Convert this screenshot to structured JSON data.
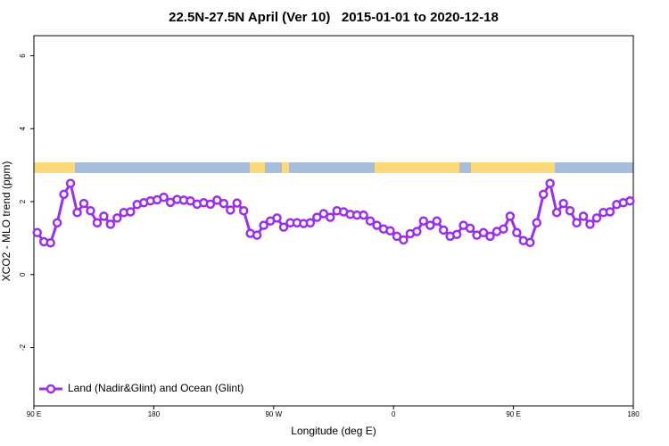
{
  "chart_data": {
    "type": "line",
    "title": "22.5N-27.5N April (Ver 10)   2015-01-01 to 2020-12-18",
    "xlabel": "Longitude (deg E)",
    "ylabel": "XCO2 - MLO trend (ppm)",
    "x": [
      92.5,
      97.5,
      102.5,
      107.5,
      112.5,
      117.5,
      122.5,
      127.5,
      132.5,
      137.5,
      142.5,
      147.5,
      152.5,
      157.5,
      162.5,
      167.5,
      172.5,
      177.5,
      182.5,
      187.5,
      192.5,
      197.5,
      202.5,
      207.5,
      212.5,
      217.5,
      222.5,
      227.5,
      232.5,
      237.5,
      242.5,
      247.5,
      252.5,
      257.5,
      262.5,
      267.5,
      272.5,
      277.5,
      282.5,
      287.5,
      292.5,
      297.5,
      302.5,
      307.5,
      312.5,
      317.5,
      322.5,
      327.5,
      332.5,
      337.5,
      342.5,
      347.5,
      352.5,
      357.5,
      362.5,
      367.5,
      372.5,
      377.5,
      382.5,
      387.5,
      392.5,
      397.5,
      402.5,
      407.5,
      412.5,
      417.5,
      422.5,
      427.5,
      432.5,
      437.5,
      442.5,
      447.5,
      452.5,
      457.5,
      462.5,
      467.5,
      472.5,
      477.5,
      482.5,
      487.5,
      492.5,
      497.5,
      502.5,
      507.5,
      512.5,
      517.5,
      522.5,
      527.5,
      532.5,
      537.5
    ],
    "series": [
      {
        "name": "Land (Nadir&Glint) and Ocean (Glint)",
        "color": "#9b30e6",
        "values": [
          1.15,
          0.9,
          0.87,
          1.42,
          2.2,
          2.5,
          1.7,
          1.95,
          1.75,
          1.42,
          1.6,
          1.38,
          1.55,
          1.7,
          1.72,
          1.92,
          1.97,
          2.02,
          2.05,
          2.12,
          1.98,
          2.06,
          2.04,
          2.02,
          1.93,
          1.97,
          1.93,
          2.04,
          1.95,
          1.77,
          1.96,
          1.75,
          1.13,
          1.08,
          1.35,
          1.47,
          1.55,
          1.3,
          1.42,
          1.42,
          1.4,
          1.42,
          1.57,
          1.67,
          1.57,
          1.75,
          1.72,
          1.65,
          1.63,
          1.63,
          1.47,
          1.35,
          1.25,
          1.2,
          1.05,
          0.95,
          1.12,
          1.18,
          1.47,
          1.35,
          1.47,
          1.22,
          1.05,
          1.1,
          1.35,
          1.27,
          1.08,
          1.15,
          1.05,
          1.18,
          1.25,
          1.6,
          1.15,
          0.93,
          0.88,
          1.42,
          2.2,
          2.5,
          1.7,
          1.95,
          1.75,
          1.42,
          1.6,
          1.38,
          1.55,
          1.7,
          1.72,
          1.92,
          1.97,
          2.02
        ]
      }
    ],
    "xlim": [
      90,
      540
    ],
    "ylim": [
      -3.6,
      6.55
    ],
    "xticks": [
      {
        "value": 90,
        "label": "90 E"
      },
      180,
      {
        "value": 270,
        "label": "90 W"
      },
      {
        "value": 360,
        "label": "0"
      },
      {
        "value": 450,
        "label": "90 E"
      },
      {
        "value": 540,
        "label": "180"
      }
    ],
    "yticks": [
      -2,
      0,
      2,
      4,
      6
    ],
    "legend": "bottom-left"
  }
}
